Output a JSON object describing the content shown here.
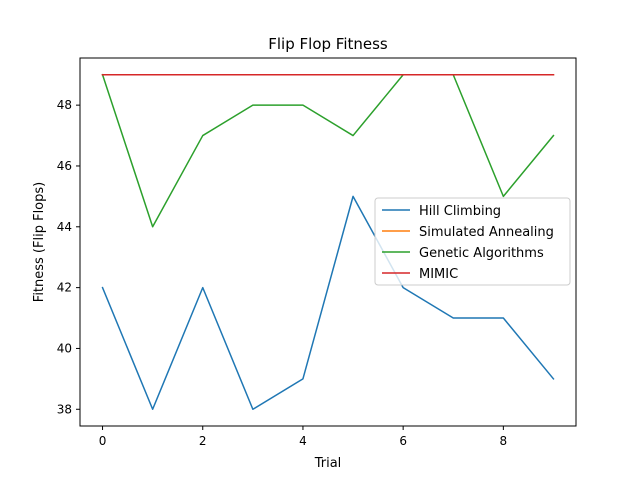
{
  "chart_data": {
    "type": "line",
    "title": "Flip Flop Fitness",
    "xlabel": "Trial",
    "ylabel": "Fitness (Flip Flops)",
    "x": [
      0,
      1,
      2,
      3,
      4,
      5,
      6,
      7,
      8,
      9
    ],
    "xlim": [
      -0.45,
      9.45
    ],
    "ylim": [
      37.45,
      49.55
    ],
    "xticks": [
      0,
      2,
      4,
      6,
      8
    ],
    "yticks": [
      38,
      40,
      42,
      44,
      46,
      48
    ],
    "grid": false,
    "legend_position": "center-right",
    "series": [
      {
        "name": "Hill Climbing",
        "color": "#1f77b4",
        "values": [
          42,
          38,
          42,
          38,
          39,
          45,
          42,
          41,
          41,
          39
        ]
      },
      {
        "name": "Simulated Annealing",
        "color": "#ff7f0e",
        "values": [
          49,
          49,
          49,
          49,
          49,
          49,
          49,
          49,
          49,
          49
        ]
      },
      {
        "name": "Genetic Algorithms",
        "color": "#2ca02c",
        "values": [
          49,
          44,
          47,
          48,
          48,
          47,
          49,
          49,
          45,
          47
        ]
      },
      {
        "name": "MIMIC",
        "color": "#d62728",
        "values": [
          49,
          49,
          49,
          49,
          49,
          49,
          49,
          49,
          49,
          49
        ]
      }
    ]
  }
}
